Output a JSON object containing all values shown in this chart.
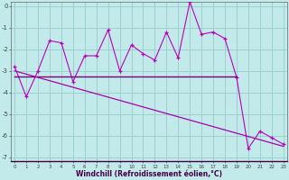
{
  "hours": [
    0,
    1,
    2,
    3,
    4,
    5,
    6,
    7,
    8,
    9,
    10,
    11,
    12,
    13,
    14,
    15,
    16,
    17,
    18,
    19,
    20,
    21,
    22,
    23
  ],
  "windchill": [
    -2.8,
    -4.2,
    -3.0,
    -1.6,
    -1.7,
    -3.5,
    -2.3,
    -2.3,
    -1.1,
    -3.0,
    -1.8,
    -2.2,
    -2.5,
    -1.2,
    -2.4,
    0.2,
    -1.3,
    -1.2,
    -1.5,
    -3.3,
    -6.6,
    -5.8,
    -6.1,
    -6.4
  ],
  "mean_line_x": [
    0,
    19
  ],
  "mean_line_y": [
    -3.25,
    -3.25
  ],
  "trend_line_x": [
    0,
    23
  ],
  "trend_line_y": [
    -3.0,
    -6.5
  ],
  "background_color": "#c2eaea",
  "grid_color": "#99cccc",
  "line_color": "#bb00bb",
  "mean_line_color": "#770077",
  "trend_line_color": "#aa00aa",
  "xlim": [
    -0.3,
    23.3
  ],
  "ylim": [
    -7.2,
    0.2
  ],
  "yticks": [
    0,
    -1,
    -2,
    -3,
    -4,
    -5,
    -6,
    -7
  ],
  "xtick_labels": [
    "0",
    "1",
    "2",
    "3",
    "4",
    "5",
    "6",
    "7",
    "8",
    "9",
    "10",
    "11",
    "12",
    "13",
    "14",
    "15",
    "16",
    "17",
    "18",
    "19",
    "20",
    "21",
    "22",
    "23"
  ],
  "xlabel": "Windchill (Refroidissement éolien,°C)"
}
